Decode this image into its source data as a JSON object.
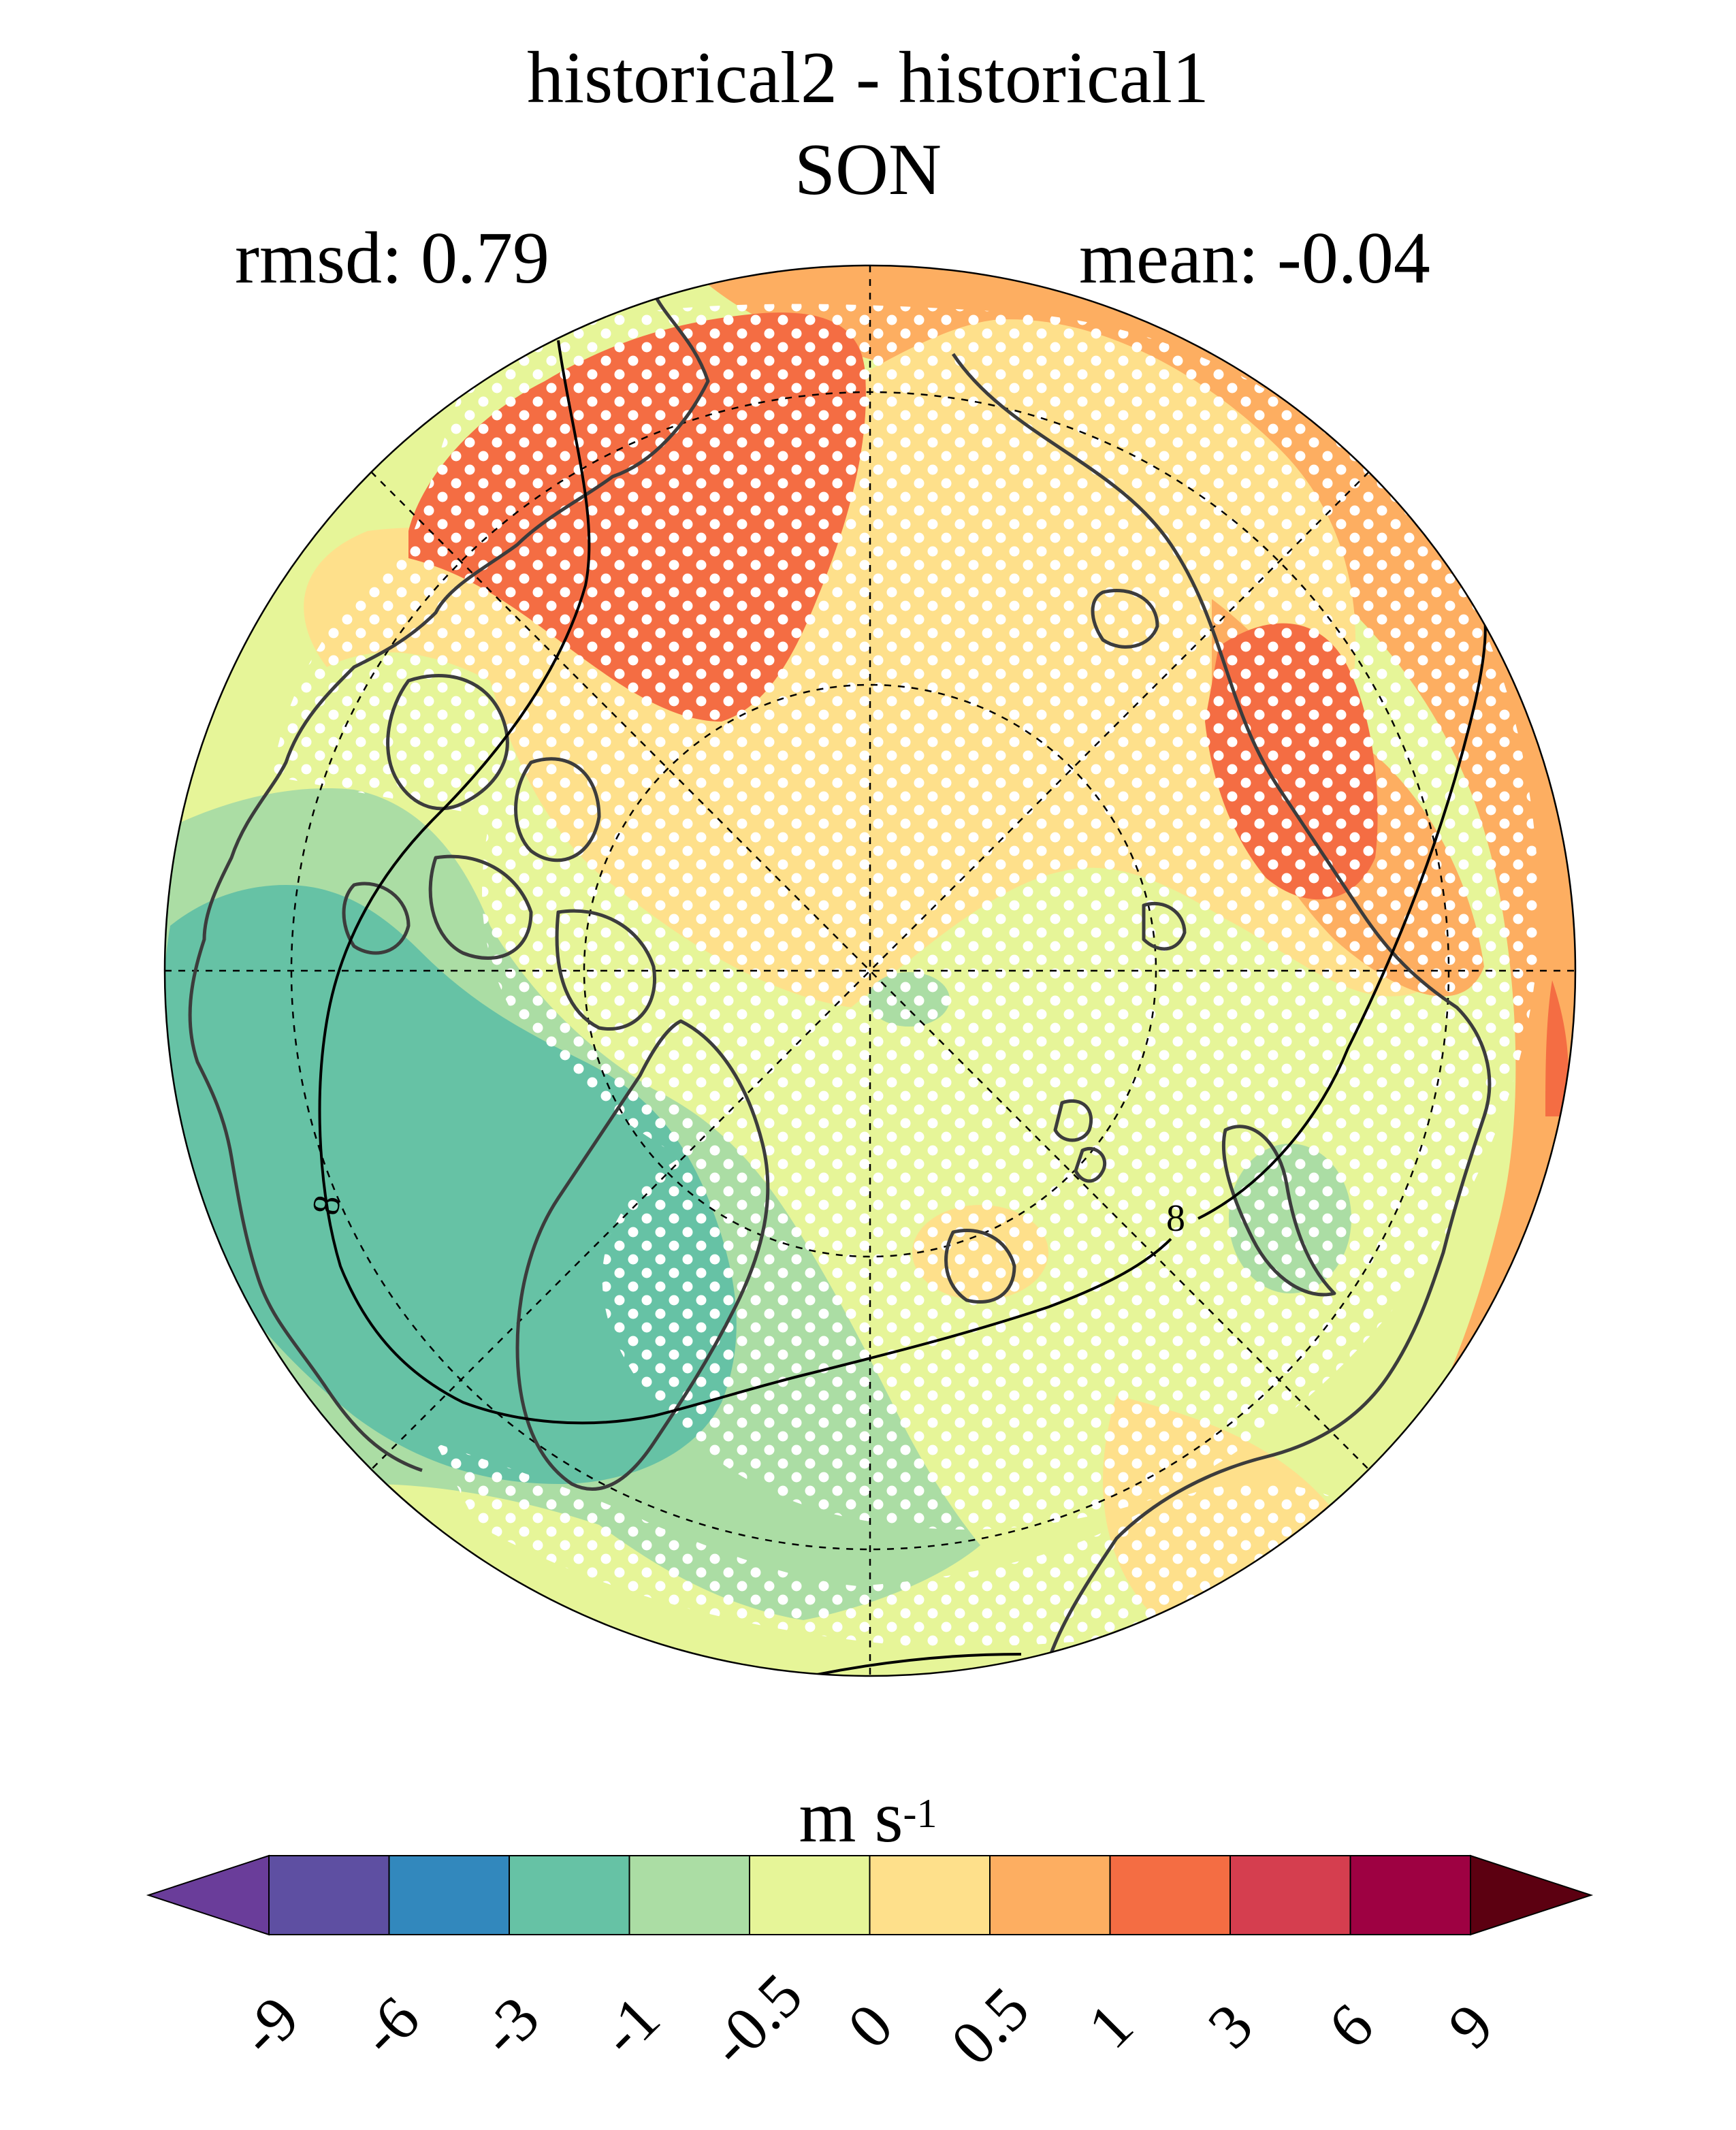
{
  "title": {
    "line1": "historical2 - historical1",
    "line2": "SON"
  },
  "stats": {
    "rmsd": "rmsd: 0.79",
    "mean": "mean: -0.04"
  },
  "map": {
    "projection": "north-polar-stereographic",
    "contour_label": "8",
    "significance_stippling": true
  },
  "colorbar": {
    "units_base": "m s",
    "units_exp": "-1",
    "levels": [
      "-9",
      "-6",
      "-3",
      "-1",
      "-0.5",
      "0",
      "0.5",
      "1",
      "3",
      "6",
      "9"
    ],
    "colors": [
      "#5e4fa2",
      "#3288bd",
      "#66c2a5",
      "#abdda4",
      "#e6f598",
      "#fee08b",
      "#fdae61",
      "#f46d43",
      "#d53e4f",
      "#9e0142"
    ],
    "extend_low_color": "#6a3d9a",
    "extend_high_color": "#5c0011"
  }
}
